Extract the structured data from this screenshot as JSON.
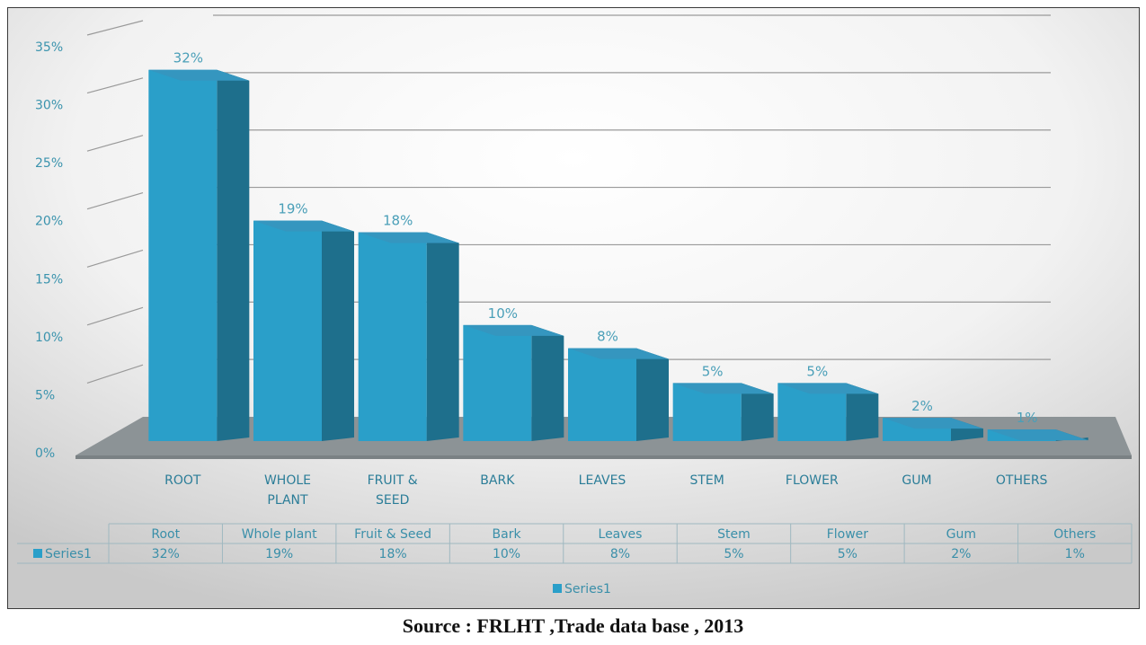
{
  "chart_data": {
    "type": "bar",
    "categories": [
      "ROOT",
      "WHOLE PLANT",
      "FRUIT & SEED",
      "BARK",
      "LEAVES",
      "STEM",
      "FLOWER",
      "GUM",
      "OTHERS"
    ],
    "category_lines": [
      [
        "ROOT"
      ],
      [
        "WHOLE",
        "PLANT"
      ],
      [
        "FRUIT &",
        "SEED"
      ],
      [
        "BARK"
      ],
      [
        "LEAVES"
      ],
      [
        "STEM"
      ],
      [
        "FLOWER"
      ],
      [
        "GUM"
      ],
      [
        "OTHERS"
      ]
    ],
    "series": [
      {
        "name": "Series1",
        "values": [
          32,
          19,
          18,
          10,
          8,
          5,
          5,
          2,
          1
        ]
      }
    ],
    "value_labels": [
      "32%",
      "19%",
      "18%",
      "10%",
      "8%",
      "5%",
      "5%",
      "2%",
      "1%"
    ],
    "ylim": [
      0,
      35
    ],
    "yticks": [
      "0%",
      "5%",
      "10%",
      "15%",
      "20%",
      "25%",
      "30%",
      "35%"
    ],
    "data_table": {
      "headers": [
        "Root",
        "Whole plant",
        "Fruit & Seed",
        "Bark",
        "Leaves",
        "Stem",
        "Flower",
        "Gum",
        "Others"
      ],
      "row_label": "Series1",
      "row_values": [
        "32%",
        "19%",
        "18%",
        "10%",
        "8%",
        "5%",
        "5%",
        "2%",
        "1%"
      ]
    },
    "legend": {
      "label": "Series1",
      "position": "bottom"
    },
    "grid": true,
    "colors": {
      "bar_front": "#2a9fc9",
      "bar_side": "#1e6f8c",
      "bar_top": "#3596bf",
      "floor": "#8c9396",
      "text": "#3a93ad"
    }
  },
  "source": "Source : FRLHT ,Trade data base , 2013"
}
